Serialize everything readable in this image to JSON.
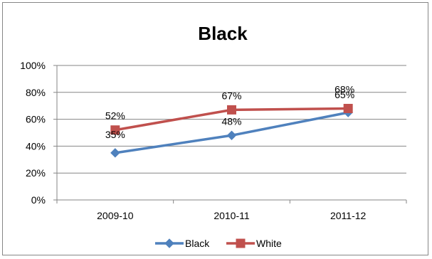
{
  "chart_data": {
    "type": "line",
    "title": "Black",
    "categories": [
      "2009-10",
      "2010-11",
      "2011-12"
    ],
    "series": [
      {
        "name": "Black",
        "values": [
          0.35,
          0.48,
          0.65
        ],
        "labels": [
          "35%",
          "48%",
          "65%"
        ],
        "color": "#4F81BD",
        "marker": "diamond"
      },
      {
        "name": "White",
        "values": [
          0.52,
          0.67,
          0.68
        ],
        "labels": [
          "52%",
          "67%",
          "68%"
        ],
        "color": "#C0504D",
        "marker": "square"
      }
    ],
    "ylim": [
      0,
      1
    ],
    "yticks": [
      "0%",
      "20%",
      "40%",
      "60%",
      "80%",
      "100%"
    ],
    "grid": true,
    "legend": "bottom"
  }
}
